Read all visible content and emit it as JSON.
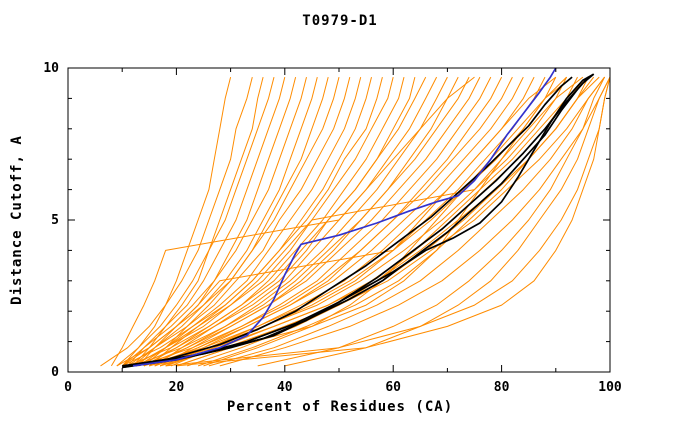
{
  "chart_data": {
    "type": "line",
    "title": "T0979-D1",
    "xlabel": "Percent of Residues (CA)",
    "ylabel": "Distance Cutoff, A",
    "xlim": [
      0,
      100
    ],
    "ylim": [
      0,
      10
    ],
    "xticks": [
      0,
      20,
      40,
      60,
      80,
      100
    ],
    "xminor": [
      10,
      30,
      50,
      70,
      90
    ],
    "yticks": [
      0,
      5,
      10
    ],
    "yminor": [
      1,
      2,
      3,
      4,
      6,
      7,
      8,
      9
    ],
    "grid": false,
    "legend": "none",
    "colors": {
      "orange": "#ff8c00",
      "black": "#000000",
      "blue": "#3232cd"
    },
    "y_levels": [
      0.2,
      0.8,
      1.5,
      2.2,
      3.0,
      4.0,
      5.0,
      6.0,
      7.0,
      8.0,
      9.0,
      9.7
    ],
    "orange_series_x": [
      [
        10,
        13,
        16,
        18,
        20,
        22,
        24,
        26,
        27,
        28,
        29,
        30
      ],
      [
        6,
        11,
        15,
        18,
        21,
        24,
        26,
        28,
        30,
        31,
        33,
        34
      ],
      [
        12,
        15,
        18,
        21,
        24,
        26,
        28,
        30,
        32,
        34,
        35,
        36
      ],
      [
        9,
        13,
        17,
        20,
        23,
        26,
        29,
        31,
        33,
        35,
        37,
        38
      ],
      [
        11,
        14,
        18,
        22,
        25,
        28,
        31,
        33,
        35,
        37,
        39,
        40
      ],
      [
        13,
        16,
        20,
        24,
        27,
        30,
        33,
        35,
        37,
        39,
        41,
        42
      ],
      [
        10,
        14,
        19,
        23,
        27,
        31,
        34,
        37,
        39,
        41,
        43,
        44
      ],
      [
        12,
        16,
        21,
        25,
        29,
        33,
        36,
        39,
        41,
        43,
        45,
        46
      ],
      [
        14,
        18,
        22,
        26,
        30,
        34,
        37,
        40,
        43,
        45,
        47,
        48
      ],
      [
        9,
        15,
        20,
        25,
        30,
        34,
        38,
        41,
        44,
        47,
        49,
        50
      ],
      [
        11,
        16,
        22,
        27,
        31,
        36,
        39,
        43,
        46,
        49,
        51,
        52
      ],
      [
        13,
        18,
        23,
        28,
        33,
        37,
        41,
        45,
        48,
        51,
        53,
        54
      ],
      [
        15,
        19,
        24,
        29,
        34,
        39,
        43,
        47,
        50,
        53,
        55,
        56
      ],
      [
        10,
        17,
        23,
        29,
        34,
        39,
        44,
        48,
        51,
        55,
        57,
        58
      ],
      [
        12,
        18,
        25,
        30,
        36,
        41,
        45,
        49,
        53,
        56,
        59,
        60
      ],
      [
        14,
        20,
        26,
        32,
        37,
        42,
        47,
        51,
        55,
        58,
        61,
        62
      ],
      [
        16,
        21,
        27,
        33,
        39,
        44,
        48,
        53,
        57,
        60,
        63,
        64
      ],
      [
        11,
        19,
        26,
        32,
        38,
        43,
        48,
        53,
        57,
        61,
        64,
        66
      ],
      [
        13,
        20,
        27,
        34,
        40,
        45,
        50,
        55,
        59,
        63,
        66,
        68
      ],
      [
        15,
        22,
        29,
        35,
        41,
        47,
        52,
        57,
        61,
        65,
        68,
        70
      ],
      [
        17,
        23,
        30,
        37,
        43,
        49,
        54,
        59,
        63,
        67,
        70,
        72
      ],
      [
        12,
        21,
        29,
        36,
        42,
        48,
        54,
        59,
        64,
        68,
        72,
        74
      ],
      [
        14,
        22,
        30,
        37,
        44,
        50,
        56,
        61,
        66,
        70,
        74,
        76
      ],
      [
        16,
        24,
        32,
        39,
        46,
        52,
        58,
        63,
        68,
        72,
        76,
        78
      ],
      [
        18,
        25,
        33,
        41,
        48,
        54,
        60,
        65,
        70,
        74,
        78,
        80
      ],
      [
        13,
        23,
        32,
        40,
        47,
        54,
        60,
        66,
        71,
        76,
        80,
        82
      ],
      [
        15,
        24,
        33,
        41,
        49,
        56,
        62,
        68,
        73,
        78,
        82,
        84
      ],
      [
        17,
        26,
        35,
        43,
        51,
        58,
        64,
        70,
        75,
        80,
        84,
        86
      ],
      [
        19,
        27,
        36,
        45,
        53,
        60,
        66,
        72,
        77,
        82,
        86,
        88
      ],
      [
        14,
        25,
        35,
        44,
        52,
        60,
        67,
        73,
        79,
        84,
        88,
        90
      ],
      [
        16,
        26,
        36,
        46,
        54,
        62,
        69,
        75,
        81,
        86,
        90,
        92
      ],
      [
        18,
        28,
        38,
        48,
        56,
        64,
        71,
        77,
        83,
        88,
        92,
        94
      ],
      [
        20,
        30,
        40,
        50,
        58,
        66,
        73,
        79,
        85,
        90,
        94,
        96
      ],
      [
        15,
        27,
        38,
        48,
        57,
        65,
        72,
        79,
        85,
        90,
        94,
        97
      ],
      [
        17,
        29,
        40,
        50,
        59,
        67,
        75,
        81,
        87,
        92,
        96,
        99
      ],
      [
        10,
        15,
        20,
        24,
        28,
        60,
        65,
        70,
        75,
        80,
        85,
        90
      ],
      [
        12,
        18,
        24,
        30,
        35,
        40,
        45,
        75,
        80,
        85,
        90,
        95
      ],
      [
        8,
        10,
        12,
        14,
        16,
        18,
        50,
        55,
        60,
        65,
        70,
        75
      ],
      [
        20,
        30,
        45,
        55,
        62,
        68,
        72,
        76,
        80,
        84,
        88,
        92
      ],
      [
        25,
        35,
        45,
        52,
        58,
        63,
        68,
        73,
        78,
        83,
        88,
        93
      ],
      [
        22,
        32,
        42,
        50,
        57,
        64,
        70,
        76,
        82,
        87,
        92,
        96
      ],
      [
        24,
        34,
        44,
        53,
        61,
        68,
        74,
        80,
        85,
        90,
        94,
        98
      ],
      [
        26,
        38,
        48,
        57,
        65,
        72,
        78,
        84,
        89,
        93,
        96,
        99
      ],
      [
        28,
        40,
        52,
        61,
        69,
        76,
        82,
        87,
        91,
        95,
        98,
        100
      ],
      [
        20,
        55,
        70,
        80,
        86,
        90,
        93,
        95,
        97,
        98,
        99,
        100
      ],
      [
        18,
        50,
        65,
        75,
        82,
        87,
        91,
        94,
        96,
        98,
        99,
        100
      ],
      [
        35,
        50,
        60,
        68,
        74,
        80,
        85,
        89,
        92,
        95,
        97,
        99
      ],
      [
        40,
        55,
        65,
        72,
        78,
        83,
        87,
        91,
        94,
        96,
        98,
        100
      ]
    ],
    "black_series": [
      [
        [
          10,
          0.15
        ],
        [
          20,
          0.4
        ],
        [
          30,
          0.8
        ],
        [
          38,
          1.2
        ],
        [
          45,
          1.8
        ],
        [
          52,
          2.4
        ],
        [
          58,
          3.0
        ],
        [
          64,
          3.8
        ],
        [
          70,
          4.6
        ],
        [
          75,
          5.4
        ],
        [
          80,
          6.2
        ],
        [
          84,
          7.0
        ],
        [
          88,
          7.8
        ],
        [
          91,
          8.6
        ],
        [
          94,
          9.3
        ],
        [
          96,
          9.7
        ]
      ],
      [
        [
          10,
          0.15
        ],
        [
          18,
          0.4
        ],
        [
          28,
          0.9
        ],
        [
          35,
          1.4
        ],
        [
          42,
          2.0
        ],
        [
          48,
          2.7
        ],
        [
          55,
          3.5
        ],
        [
          61,
          4.3
        ],
        [
          67,
          5.1
        ],
        [
          72,
          5.9
        ],
        [
          77,
          6.7
        ],
        [
          81,
          7.4
        ],
        [
          85,
          8.1
        ],
        [
          88,
          8.8
        ],
        [
          91,
          9.4
        ],
        [
          93,
          9.7
        ]
      ],
      [
        [
          11,
          0.2
        ],
        [
          22,
          0.5
        ],
        [
          33,
          1.0
        ],
        [
          42,
          1.6
        ],
        [
          50,
          2.3
        ],
        [
          57,
          3.1
        ],
        [
          63,
          3.9
        ],
        [
          69,
          4.7
        ],
        [
          74,
          5.5
        ],
        [
          79,
          6.3
        ],
        [
          84,
          7.2
        ],
        [
          88,
          8.0
        ],
        [
          92,
          8.9
        ],
        [
          95,
          9.5
        ],
        [
          97,
          9.8
        ]
      ],
      [
        [
          10,
          0.2
        ],
        [
          25,
          0.6
        ],
        [
          36,
          1.1
        ],
        [
          44,
          1.7
        ],
        [
          52,
          2.5
        ],
        [
          60,
          3.3
        ],
        [
          66,
          4.0
        ],
        [
          71,
          4.4
        ],
        [
          76,
          4.9
        ],
        [
          80,
          5.6
        ],
        [
          83,
          6.4
        ],
        [
          86,
          7.3
        ],
        [
          89,
          8.2
        ],
        [
          92,
          9.0
        ],
        [
          95,
          9.6
        ],
        [
          97,
          9.8
        ]
      ]
    ],
    "blue_series": [
      [
        12,
        0.2
      ],
      [
        20,
        0.4
      ],
      [
        28,
        0.8
      ],
      [
        33,
        1.2
      ],
      [
        36,
        1.8
      ],
      [
        38,
        2.4
      ],
      [
        40,
        3.2
      ],
      [
        42,
        3.9
      ],
      [
        43,
        4.2
      ],
      [
        50,
        4.5
      ],
      [
        57,
        4.9
      ],
      [
        63,
        5.3
      ],
      [
        68,
        5.6
      ],
      [
        72,
        5.8
      ],
      [
        75,
        6.3
      ],
      [
        78,
        7.0
      ],
      [
        81,
        7.8
      ],
      [
        84,
        8.5
      ],
      [
        87,
        9.2
      ],
      [
        89,
        9.7
      ],
      [
        90,
        10.0
      ]
    ]
  }
}
